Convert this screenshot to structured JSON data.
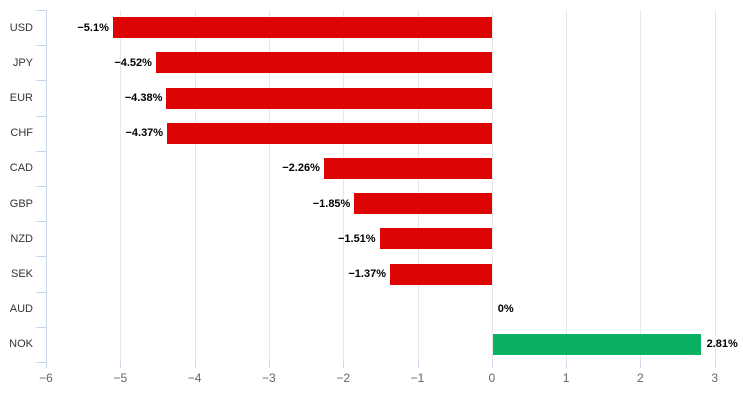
{
  "chart_data": {
    "type": "bar",
    "orientation": "horizontal",
    "title": "",
    "xlabel": "",
    "ylabel": "",
    "legend": false,
    "grid": true,
    "categories": [
      "USD",
      "JPY",
      "EUR",
      "CHF",
      "CAD",
      "GBP",
      "NZD",
      "SEK",
      "AUD",
      "NOK"
    ],
    "values": [
      -5.1,
      -4.52,
      -4.38,
      -4.37,
      -2.26,
      -1.85,
      -1.51,
      -1.37,
      0,
      2.81
    ],
    "labels": [
      "−5.1%",
      "−4.52%",
      "−4.38%",
      "−4.37%",
      "−2.26%",
      "−1.85%",
      "−1.51%",
      "−1.37%",
      "0%",
      "2.81%"
    ],
    "x_ticks": [
      -6,
      -5,
      -4,
      -3,
      -2,
      -1,
      0,
      1,
      2,
      3
    ],
    "x_tick_labels": [
      "−6",
      "−5",
      "−4",
      "−3",
      "−2",
      "−1",
      "0",
      "1",
      "2",
      "3"
    ],
    "xlim": [
      -6,
      3
    ],
    "colors": {
      "negative": "#dd0404",
      "positive": "#0bb163",
      "grid": "#e6e6e6",
      "axis": "#ccd6eb",
      "tick_label": "#666666",
      "category_label": "#333333",
      "value_label": "#000000",
      "background": "#ffffff"
    }
  }
}
